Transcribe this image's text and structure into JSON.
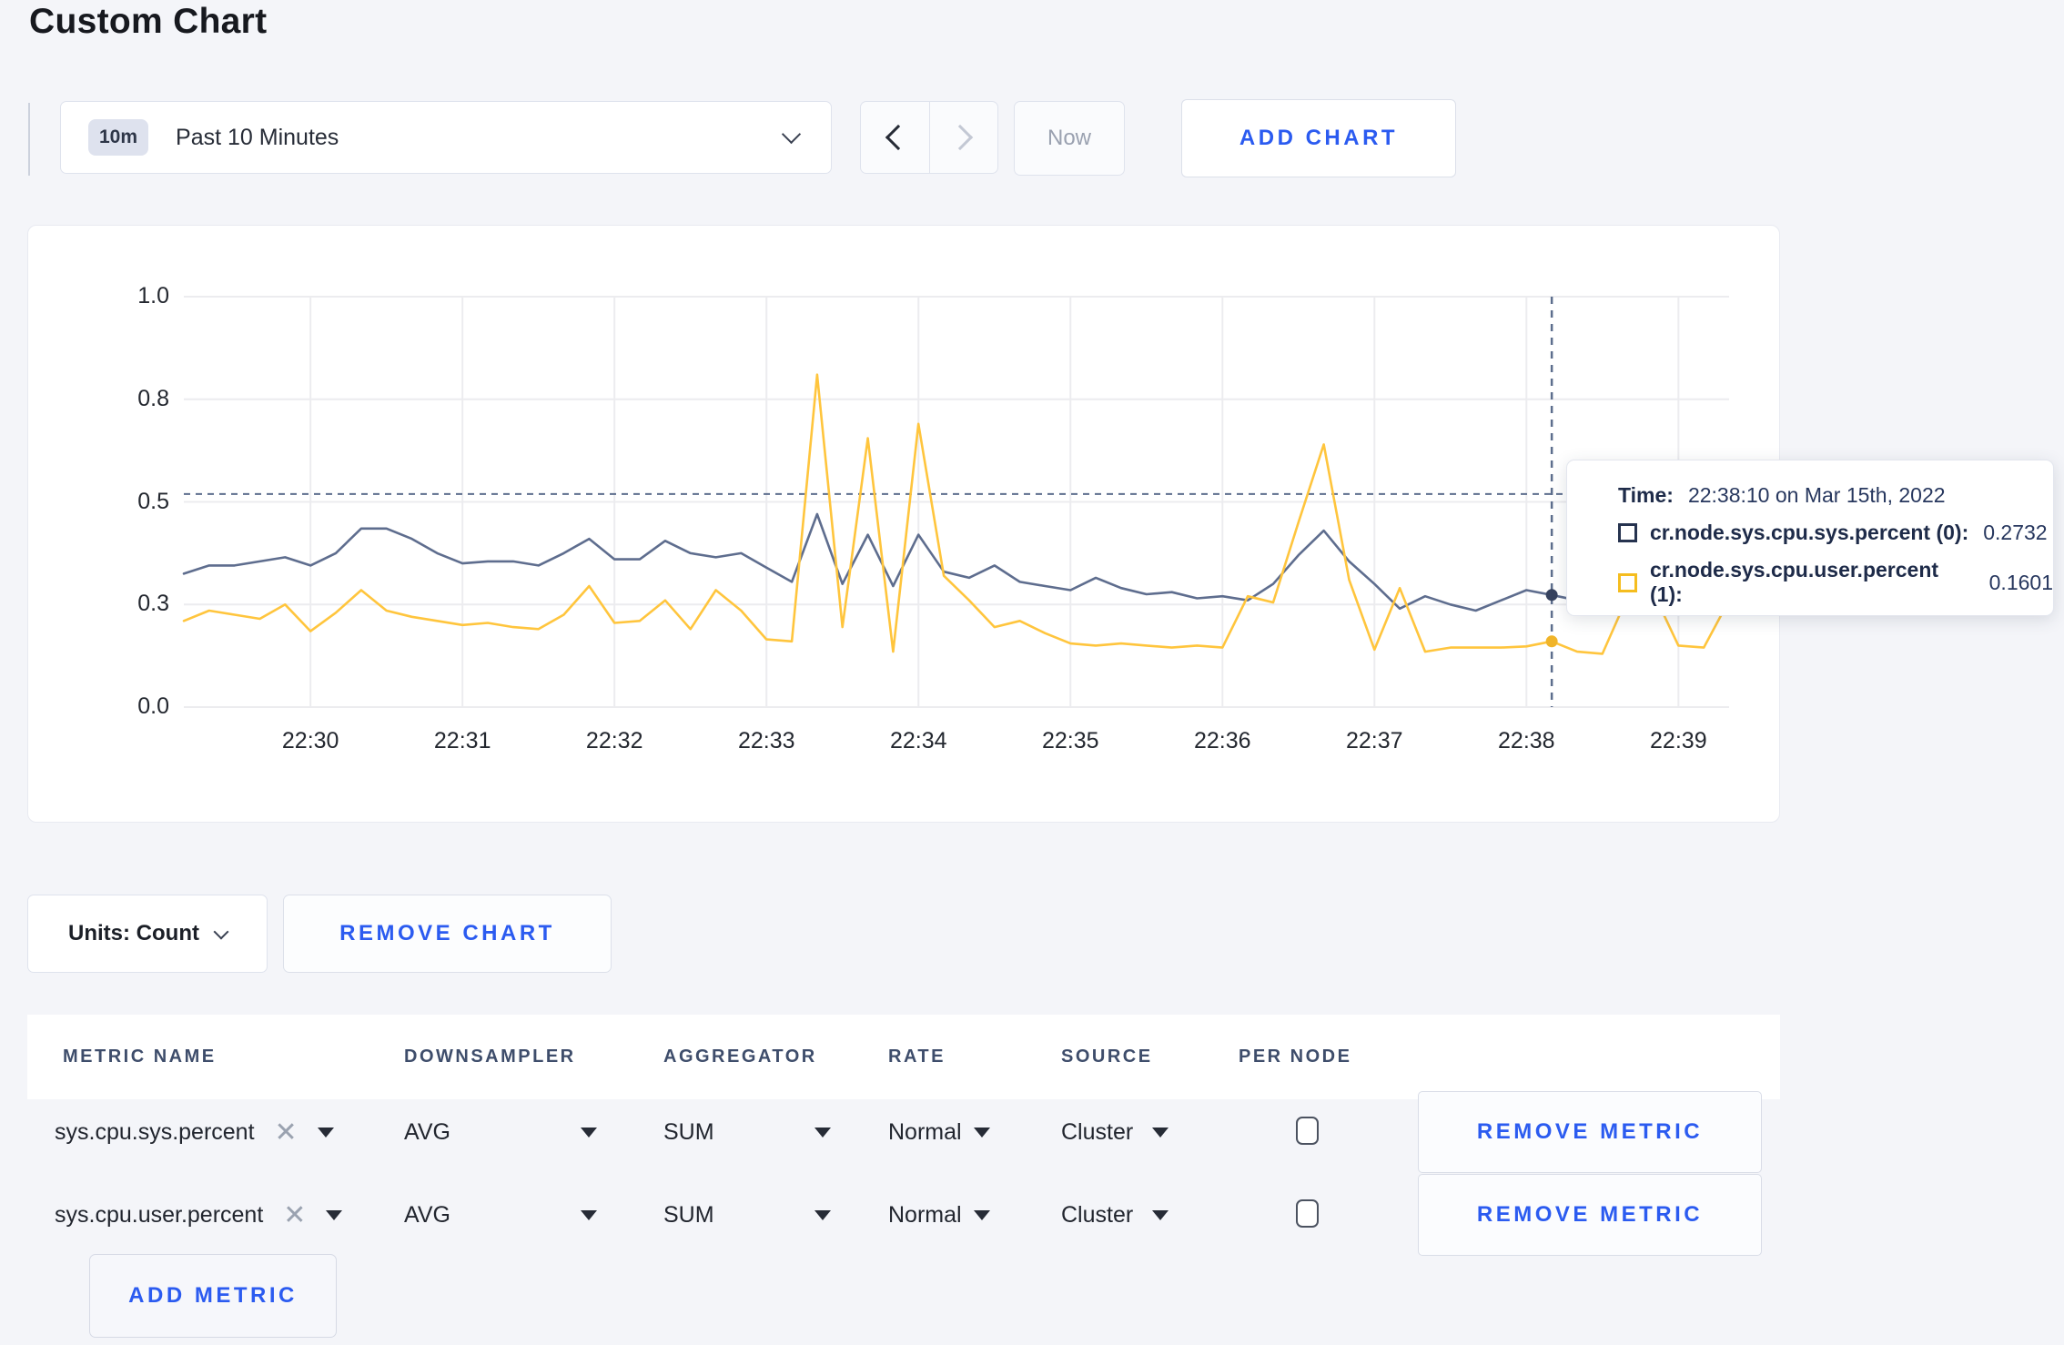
{
  "page": {
    "title": "Custom Chart"
  },
  "colors": {
    "accent_blue": "#2b5bf0",
    "page_background": "#f4f5f9",
    "gridline": "#ececef",
    "crosshair": "#5d6e8d",
    "axis_label": "#23272f"
  },
  "toolbar": {
    "time_scale_badge": "10m",
    "time_range_label": "Past 10 Minutes",
    "now_label": "Now",
    "add_chart_label": "ADD CHART"
  },
  "chart_data": {
    "type": "line",
    "title": "",
    "xlabel": "",
    "ylabel": "",
    "ylim": [
      0,
      1
    ],
    "grid": true,
    "legend_position": "tooltip-only",
    "start_time": "22:29:10",
    "interval_seconds": 10,
    "x_ticks": [
      {
        "label": "22:30",
        "offset_s": 50
      },
      {
        "label": "22:31",
        "offset_s": 110
      },
      {
        "label": "22:32",
        "offset_s": 170
      },
      {
        "label": "22:33",
        "offset_s": 230
      },
      {
        "label": "22:34",
        "offset_s": 290
      },
      {
        "label": "22:35",
        "offset_s": 350
      },
      {
        "label": "22:36",
        "offset_s": 410
      },
      {
        "label": "22:37",
        "offset_s": 470
      },
      {
        "label": "22:38",
        "offset_s": 530
      },
      {
        "label": "22:39",
        "offset_s": 590
      }
    ],
    "y_ticks": [
      {
        "label": "0.0",
        "value": 0
      },
      {
        "label": "0.3",
        "value": 0.25
      },
      {
        "label": "0.5",
        "value": 0.5
      },
      {
        "label": "0.8",
        "value": 0.75
      },
      {
        "label": "1.0",
        "value": 1
      }
    ],
    "series": [
      {
        "name": "cr.node.sys.cpu.sys.percent (0)",
        "color": "#5e6d8e",
        "marker_color": "#36425e",
        "values": [
          0.325,
          0.345,
          0.345,
          0.355,
          0.365,
          0.345,
          0.375,
          0.435,
          0.435,
          0.41,
          0.375,
          0.35,
          0.355,
          0.355,
          0.345,
          0.375,
          0.41,
          0.36,
          0.36,
          0.405,
          0.375,
          0.365,
          0.375,
          0.34,
          0.305,
          0.47,
          0.3,
          0.42,
          0.295,
          0.42,
          0.33,
          0.315,
          0.345,
          0.305,
          0.295,
          0.285,
          0.315,
          0.29,
          0.275,
          0.28,
          0.265,
          0.27,
          0.26,
          0.3,
          0.37,
          0.43,
          0.355,
          0.3,
          0.24,
          0.27,
          0.25,
          0.235,
          0.26,
          0.285,
          0.2732,
          0.26,
          0.27,
          0.265,
          0.27,
          0.275,
          0.27,
          0.275
        ]
      },
      {
        "name": "cr.node.sys.cpu.user.percent (1)",
        "color": "#ffc53d",
        "marker_color": "#f0b429",
        "values": [
          0.21,
          0.235,
          0.225,
          0.215,
          0.25,
          0.185,
          0.23,
          0.285,
          0.235,
          0.22,
          0.21,
          0.2,
          0.205,
          0.195,
          0.19,
          0.225,
          0.295,
          0.205,
          0.21,
          0.26,
          0.19,
          0.285,
          0.235,
          0.165,
          0.16,
          0.81,
          0.195,
          0.655,
          0.135,
          0.69,
          0.32,
          0.26,
          0.195,
          0.21,
          0.18,
          0.155,
          0.15,
          0.155,
          0.15,
          0.145,
          0.15,
          0.145,
          0.27,
          0.255,
          0.45,
          0.64,
          0.31,
          0.14,
          0.29,
          0.135,
          0.145,
          0.145,
          0.145,
          0.148,
          0.1601,
          0.135,
          0.13,
          0.27,
          0.28,
          0.15,
          0.145,
          0.26
        ]
      }
    ],
    "hover": {
      "index": 54,
      "time": "22:38:10 on Mar 15th, 2022",
      "crosshair_value": 0.519,
      "values": [
        0.2732,
        0.1601
      ]
    }
  },
  "tooltip": {
    "time_label": "Time:",
    "time_value": "22:38:10 on Mar 15th, 2022",
    "rows": [
      {
        "name": "cr.node.sys.cpu.sys.percent (0):",
        "value": "0.2732",
        "color": "#26334f"
      },
      {
        "name": "cr.node.sys.cpu.user.percent (1):",
        "value": "0.1601",
        "color": "#f5bd1f"
      }
    ]
  },
  "chart_controls": {
    "units_label": "Units: Count",
    "remove_chart_label": "REMOVE CHART"
  },
  "metrics_table": {
    "headers": [
      "METRIC NAME",
      "DOWNSAMPLER",
      "AGGREGATOR",
      "RATE",
      "SOURCE",
      "PER NODE"
    ],
    "rows": [
      {
        "metric_name": "sys.cpu.sys.percent",
        "downsampler": "AVG",
        "aggregator": "SUM",
        "rate": "Normal",
        "source": "Cluster",
        "per_node_checked": false,
        "remove_label": "REMOVE METRIC"
      },
      {
        "metric_name": "sys.cpu.user.percent",
        "downsampler": "AVG",
        "aggregator": "SUM",
        "rate": "Normal",
        "source": "Cluster",
        "per_node_checked": false,
        "remove_label": "REMOVE METRIC"
      }
    ],
    "add_metric_label": "ADD METRIC"
  }
}
